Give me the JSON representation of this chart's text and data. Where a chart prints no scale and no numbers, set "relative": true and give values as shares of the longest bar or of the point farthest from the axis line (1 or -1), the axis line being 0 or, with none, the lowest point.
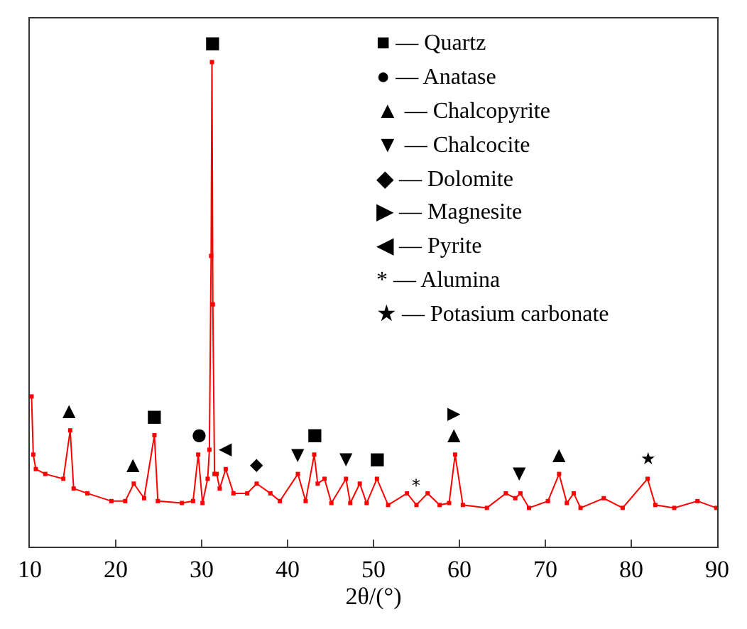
{
  "chart_data": {
    "type": "line",
    "relative": true,
    "xlabel": "2θ/(°)",
    "xlim": [
      10,
      90
    ],
    "xticks": [
      10,
      20,
      30,
      40,
      50,
      60,
      70,
      80,
      90
    ],
    "marker": "square",
    "line_style": "solid",
    "tick_labels": "x",
    "series": [
      {
        "color": "#ff0000",
        "x": [
          10.2,
          10.4,
          10.7,
          11.8,
          13.9,
          14.7,
          15.1,
          16.7,
          19.5,
          21.1,
          22.1,
          23.3,
          24.5,
          24.9,
          27.7,
          29.0,
          29.6,
          30.1,
          30.7,
          30.9,
          31.1,
          31.2,
          31.3,
          31.5,
          31.75,
          32.1,
          32.8,
          33.7,
          35.3,
          36.4,
          38.0,
          39.1,
          41.2,
          42.1,
          43.1,
          43.5,
          44.3,
          45.1,
          46.8,
          47.3,
          48.4,
          49.2,
          50.4,
          51.7,
          53.9,
          55.0,
          56.3,
          57.7,
          58.8,
          59.5,
          60.4,
          63.2,
          65.4,
          66.5,
          67.1,
          68.1,
          70.3,
          71.6,
          72.5,
          73.3,
          74.1,
          76.8,
          79.0,
          81.9,
          82.8,
          85.0,
          87.7,
          89.9
        ],
        "values": [
          0.31,
          0.19,
          0.16,
          0.15,
          0.14,
          0.24,
          0.12,
          0.11,
          0.094,
          0.094,
          0.13,
          0.1,
          0.23,
          0.094,
          0.09,
          0.094,
          0.19,
          0.09,
          0.14,
          0.2,
          0.6,
          1.0,
          0.5,
          0.15,
          0.15,
          0.12,
          0.16,
          0.11,
          0.11,
          0.13,
          0.11,
          0.094,
          0.15,
          0.094,
          0.19,
          0.13,
          0.14,
          0.09,
          0.14,
          0.09,
          0.13,
          0.09,
          0.14,
          0.086,
          0.11,
          0.086,
          0.11,
          0.086,
          0.09,
          0.19,
          0.086,
          0.08,
          0.11,
          0.1,
          0.11,
          0.08,
          0.094,
          0.15,
          0.09,
          0.11,
          0.08,
          0.1,
          0.08,
          0.14,
          0.086,
          0.08,
          0.094,
          0.08
        ]
      }
    ],
    "annotations": [
      "■ — Quartz",
      "● — Anatase",
      "▲ — Chalcopyrite",
      "▼ — Chalcocite",
      "◆ — Dolomite",
      "▶ — Magnesite",
      "◀ — Pyrite",
      "* — Alumina",
      "★ — Potasium carbonate",
      {
        "text": "▲",
        "x": 14.7,
        "y": 0.24
      },
      {
        "text": "▲",
        "x": 22.1,
        "y": 0.13
      },
      {
        "text": "■",
        "x": 24.5,
        "y": 0.23
      },
      {
        "text": "●",
        "x": 29.6,
        "y": 0.19
      },
      {
        "text": "■",
        "x": 31.2,
        "y": 1.0
      },
      {
        "text": "◀",
        "x": 32.8,
        "y": 0.16
      },
      {
        "text": "◆",
        "x": 36.4,
        "y": 0.13
      },
      {
        "text": "▼",
        "x": 41.2,
        "y": 0.15
      },
      {
        "text": "■",
        "x": 43.1,
        "y": 0.19
      },
      {
        "text": "▼",
        "x": 46.8,
        "y": 0.14
      },
      {
        "text": "■",
        "x": 50.4,
        "y": 0.14
      },
      {
        "text": "*",
        "x": 55.0,
        "y": 0.086
      },
      {
        "text": "▲",
        "x": 59.5,
        "y": 0.19
      },
      {
        "text": "▶",
        "x": 59.5,
        "y": 0.19
      },
      {
        "text": "▼",
        "x": 67.1,
        "y": 0.11
      },
      {
        "text": "▲",
        "x": 71.6,
        "y": 0.15
      },
      {
        "text": "★",
        "x": 81.9,
        "y": 0.14
      }
    ]
  }
}
